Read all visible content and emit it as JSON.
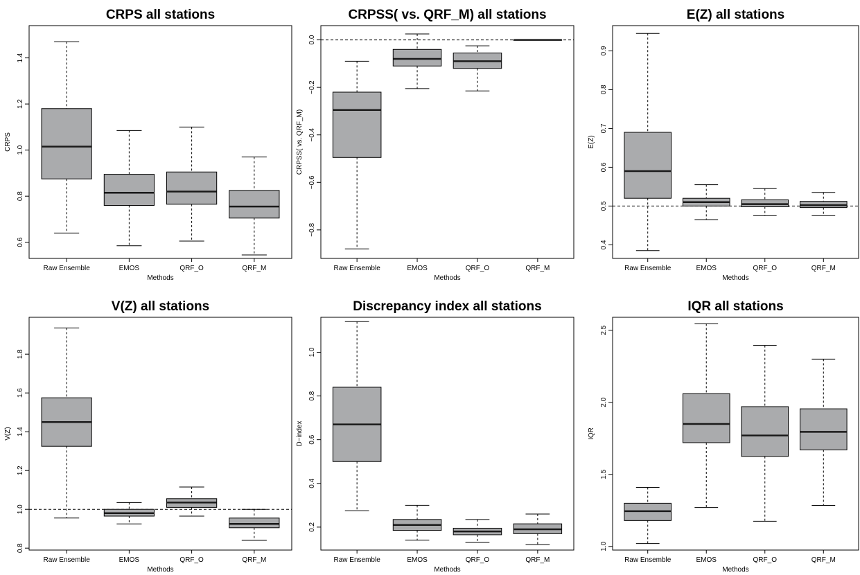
{
  "figure": {
    "categories": [
      "Raw Ensemble",
      "EMOS",
      "QRF_O",
      "QRF_M"
    ],
    "box_fill": "#aaabad",
    "median_color": "#1a1a1a"
  },
  "chart_data": [
    {
      "type": "boxplot",
      "title": "CRPS all stations",
      "xlabel": "Methods",
      "ylabel": "CRPS",
      "ylim": [
        0.53,
        1.54
      ],
      "yticks": [
        0.6,
        0.8,
        1.0,
        1.2,
        1.4
      ],
      "ytick_labels": [
        "0.6",
        "0.8",
        "1.0",
        "1.2",
        "1.4"
      ],
      "categories": [
        "Raw Ensemble",
        "EMOS",
        "QRF_O",
        "QRF_M"
      ],
      "boxes": [
        {
          "min": 0.64,
          "q1": 0.875,
          "median": 1.015,
          "q3": 1.18,
          "max": 1.47
        },
        {
          "min": 0.585,
          "q1": 0.76,
          "median": 0.815,
          "q3": 0.895,
          "max": 1.085
        },
        {
          "min": 0.605,
          "q1": 0.765,
          "median": 0.82,
          "q3": 0.905,
          "max": 1.1
        },
        {
          "min": 0.545,
          "q1": 0.705,
          "median": 0.755,
          "q3": 0.825,
          "max": 0.97
        }
      ]
    },
    {
      "type": "boxplot",
      "title": "CRPSS( vs. QRF_M) all stations",
      "xlabel": "Methods",
      "ylabel": "CRPSS( vs. QRF_M)",
      "ylim": [
        -0.92,
        0.06
      ],
      "yticks": [
        -0.8,
        -0.6,
        -0.4,
        -0.2,
        0.0
      ],
      "ytick_labels": [
        "−0.8",
        "−0.6",
        "−0.4",
        "−0.2",
        "0.0"
      ],
      "reference_line": 0.0,
      "categories": [
        "Raw Ensemble",
        "EMOS",
        "QRF_O",
        "QRF_M"
      ],
      "boxes": [
        {
          "min": -0.88,
          "q1": -0.495,
          "median": -0.295,
          "q3": -0.22,
          "max": -0.09
        },
        {
          "min": -0.205,
          "q1": -0.11,
          "median": -0.08,
          "q3": -0.04,
          "max": 0.025
        },
        {
          "min": -0.215,
          "q1": -0.12,
          "median": -0.09,
          "q3": -0.055,
          "max": -0.025
        },
        {
          "min": 0.0,
          "q1": 0.0,
          "median": 0.0,
          "q3": 0.0,
          "max": 0.0
        }
      ]
    },
    {
      "type": "boxplot",
      "title": "E(Z) all stations",
      "xlabel": "Methods",
      "ylabel": "E(Z)",
      "ylim": [
        0.365,
        0.965
      ],
      "yticks": [
        0.4,
        0.5,
        0.6,
        0.7,
        0.8,
        0.9
      ],
      "ytick_labels": [
        "0.4",
        "0.5",
        "0.6",
        "0.7",
        "0.8",
        "0.9"
      ],
      "reference_line": 0.5,
      "categories": [
        "Raw Ensemble",
        "EMOS",
        "QRF_O",
        "QRF_M"
      ],
      "boxes": [
        {
          "min": 0.385,
          "q1": 0.52,
          "median": 0.59,
          "q3": 0.69,
          "max": 0.945
        },
        {
          "min": 0.465,
          "q1": 0.5,
          "median": 0.51,
          "q3": 0.52,
          "max": 0.555
        },
        {
          "min": 0.475,
          "q1": 0.498,
          "median": 0.505,
          "q3": 0.516,
          "max": 0.545
        },
        {
          "min": 0.475,
          "q1": 0.496,
          "median": 0.502,
          "q3": 0.512,
          "max": 0.535
        }
      ]
    },
    {
      "type": "boxplot",
      "title": "V(Z) all stations",
      "xlabel": "Methods",
      "ylabel": "V(Z)",
      "ylim": [
        0.79,
        1.99
      ],
      "yticks": [
        0.8,
        1.0,
        1.2,
        1.4,
        1.6,
        1.8
      ],
      "ytick_labels": [
        "0.8",
        "1.0",
        "1.2",
        "1.4",
        "1.6",
        "1.8"
      ],
      "reference_line": 1.0,
      "categories": [
        "Raw Ensemble",
        "EMOS",
        "QRF_O",
        "QRF_M"
      ],
      "boxes": [
        {
          "min": 0.955,
          "q1": 1.325,
          "median": 1.45,
          "q3": 1.575,
          "max": 1.935
        },
        {
          "min": 0.925,
          "q1": 0.965,
          "median": 0.98,
          "q3": 1.0,
          "max": 1.035
        },
        {
          "min": 0.965,
          "q1": 1.01,
          "median": 1.035,
          "q3": 1.055,
          "max": 1.115
        },
        {
          "min": 0.84,
          "q1": 0.905,
          "median": 0.925,
          "q3": 0.955,
          "max": 1.0
        }
      ]
    },
    {
      "type": "boxplot",
      "title": "Discrepancy index all stations",
      "xlabel": "Methods",
      "ylabel": "D−index",
      "ylim": [
        0.095,
        1.16
      ],
      "yticks": [
        0.2,
        0.4,
        0.6,
        0.8,
        1.0
      ],
      "ytick_labels": [
        "0.2",
        "0.4",
        "0.6",
        "0.8",
        "1.0"
      ],
      "categories": [
        "Raw Ensemble",
        "EMOS",
        "QRF_O",
        "QRF_M"
      ],
      "boxes": [
        {
          "min": 0.275,
          "q1": 0.5,
          "median": 0.67,
          "q3": 0.84,
          "max": 1.14
        },
        {
          "min": 0.14,
          "q1": 0.185,
          "median": 0.21,
          "q3": 0.235,
          "max": 0.3
        },
        {
          "min": 0.13,
          "q1": 0.165,
          "median": 0.18,
          "q3": 0.195,
          "max": 0.235
        },
        {
          "min": 0.12,
          "q1": 0.17,
          "median": 0.19,
          "q3": 0.215,
          "max": 0.26
        }
      ]
    },
    {
      "type": "boxplot",
      "title": "IQR all stations",
      "xlabel": "Methods",
      "ylabel": "IQR",
      "ylim": [
        0.975,
        2.59
      ],
      "yticks": [
        1.0,
        1.5,
        2.0,
        2.5
      ],
      "ytick_labels": [
        "1.0",
        "1.5",
        "2.0",
        "2.5"
      ],
      "categories": [
        "Raw Ensemble",
        "EMOS",
        "QRF_O",
        "QRF_M"
      ],
      "boxes": [
        {
          "min": 1.02,
          "q1": 1.18,
          "median": 1.245,
          "q3": 1.3,
          "max": 1.41
        },
        {
          "min": 1.27,
          "q1": 1.72,
          "median": 1.85,
          "q3": 2.06,
          "max": 2.545
        },
        {
          "min": 1.175,
          "q1": 1.625,
          "median": 1.77,
          "q3": 1.97,
          "max": 2.395
        },
        {
          "min": 1.285,
          "q1": 1.67,
          "median": 1.795,
          "q3": 1.955,
          "max": 2.3
        }
      ]
    }
  ]
}
